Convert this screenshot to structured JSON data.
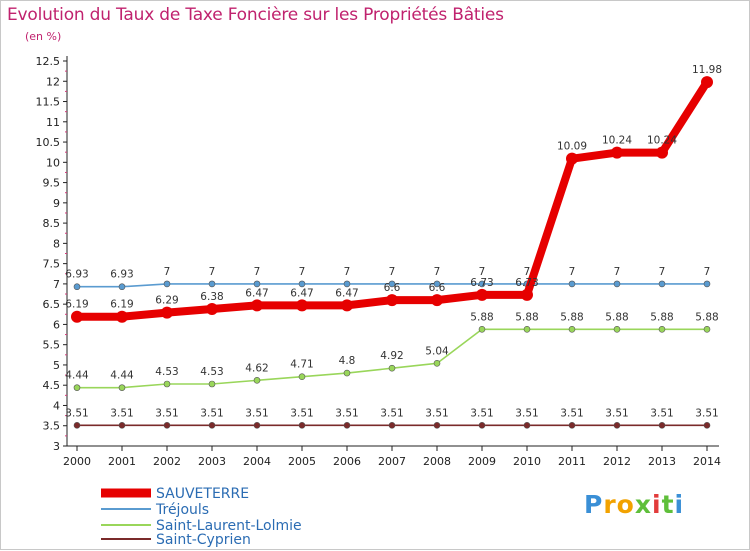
{
  "chart_data": {
    "type": "line",
    "title": "Evolution du Taux de Taxe Foncière sur les Propriétés Bâties",
    "subtitle": "(en %)",
    "xlabel": "",
    "ylabel": "(en %)",
    "categories": [
      "2000",
      "2001",
      "2002",
      "2003",
      "2004",
      "2005",
      "2006",
      "2007",
      "2008",
      "2009",
      "2010",
      "2011",
      "2012",
      "2013",
      "2014"
    ],
    "ylim": [
      3,
      12.5
    ],
    "yticks": [
      "3",
      "3.5",
      "4",
      "4.5",
      "5",
      "5.5",
      "6",
      "6.5",
      "7",
      "7.5",
      "8",
      "8.5",
      "9",
      "9.5",
      "10",
      "10.5",
      "11",
      "11.5",
      "12",
      "12.5"
    ],
    "series": [
      {
        "name": "SAUVETERRE",
        "color": "#e60000",
        "values": [
          6.19,
          6.19,
          6.29,
          6.38,
          6.47,
          6.47,
          6.47,
          6.6,
          6.6,
          6.73,
          6.73,
          10.09,
          10.24,
          10.24,
          11.98
        ],
        "labels": [
          "6.19",
          "6.19",
          "6.29",
          "6.38",
          "6.47",
          "6.47",
          "6.47",
          "6.6",
          "6.6",
          "6.73",
          "6.73",
          "10.09",
          "10.24",
          "10.24",
          "11.98"
        ]
      },
      {
        "name": "Tréjouls",
        "color": "#5a9bd0",
        "values": [
          6.93,
          6.93,
          7,
          7,
          7,
          7,
          7,
          7,
          7,
          7,
          7,
          7,
          7,
          7,
          7
        ],
        "labels": [
          "6.93",
          "6.93",
          "7",
          "7",
          "7",
          "7",
          "7",
          "7",
          "7",
          "7",
          "7",
          "7",
          "7",
          "7",
          "7"
        ]
      },
      {
        "name": "Saint-Laurent-Lolmie",
        "color": "#99d65a",
        "values": [
          4.44,
          4.44,
          4.53,
          4.53,
          4.62,
          4.71,
          4.8,
          4.92,
          5.04,
          5.88,
          5.88,
          5.88,
          5.88,
          5.88,
          5.88
        ],
        "labels": [
          "4.44",
          "4.44",
          "4.53",
          "4.53",
          "4.62",
          "4.71",
          "4.8",
          "4.92",
          "5.04",
          "5.88",
          "5.88",
          "5.88",
          "5.88",
          "5.88",
          "5.88"
        ]
      },
      {
        "name": "Saint-Cyprien",
        "color": "#7a2a2a",
        "values": [
          3.51,
          3.51,
          3.51,
          3.51,
          3.51,
          3.51,
          3.51,
          3.51,
          3.51,
          3.51,
          3.51,
          3.51,
          3.51,
          3.51,
          3.51
        ],
        "labels": [
          "3.51",
          "3.51",
          "3.51",
          "3.51",
          "3.51",
          "3.51",
          "3.51",
          "3.51",
          "3.51",
          "3.51",
          "3.51",
          "3.51",
          "3.51",
          "3.51",
          "3.51"
        ]
      }
    ],
    "legend_position": "bottom-left",
    "grid": false
  },
  "logo": {
    "letters": [
      "P",
      "r",
      "o",
      "x",
      "i",
      "t",
      "i"
    ],
    "colors": [
      "#3a8fd6",
      "#f2a200",
      "#f2a200",
      "#5fbf3a",
      "#e23b3b",
      "#5fbf3a",
      "#3a8fd6"
    ]
  }
}
